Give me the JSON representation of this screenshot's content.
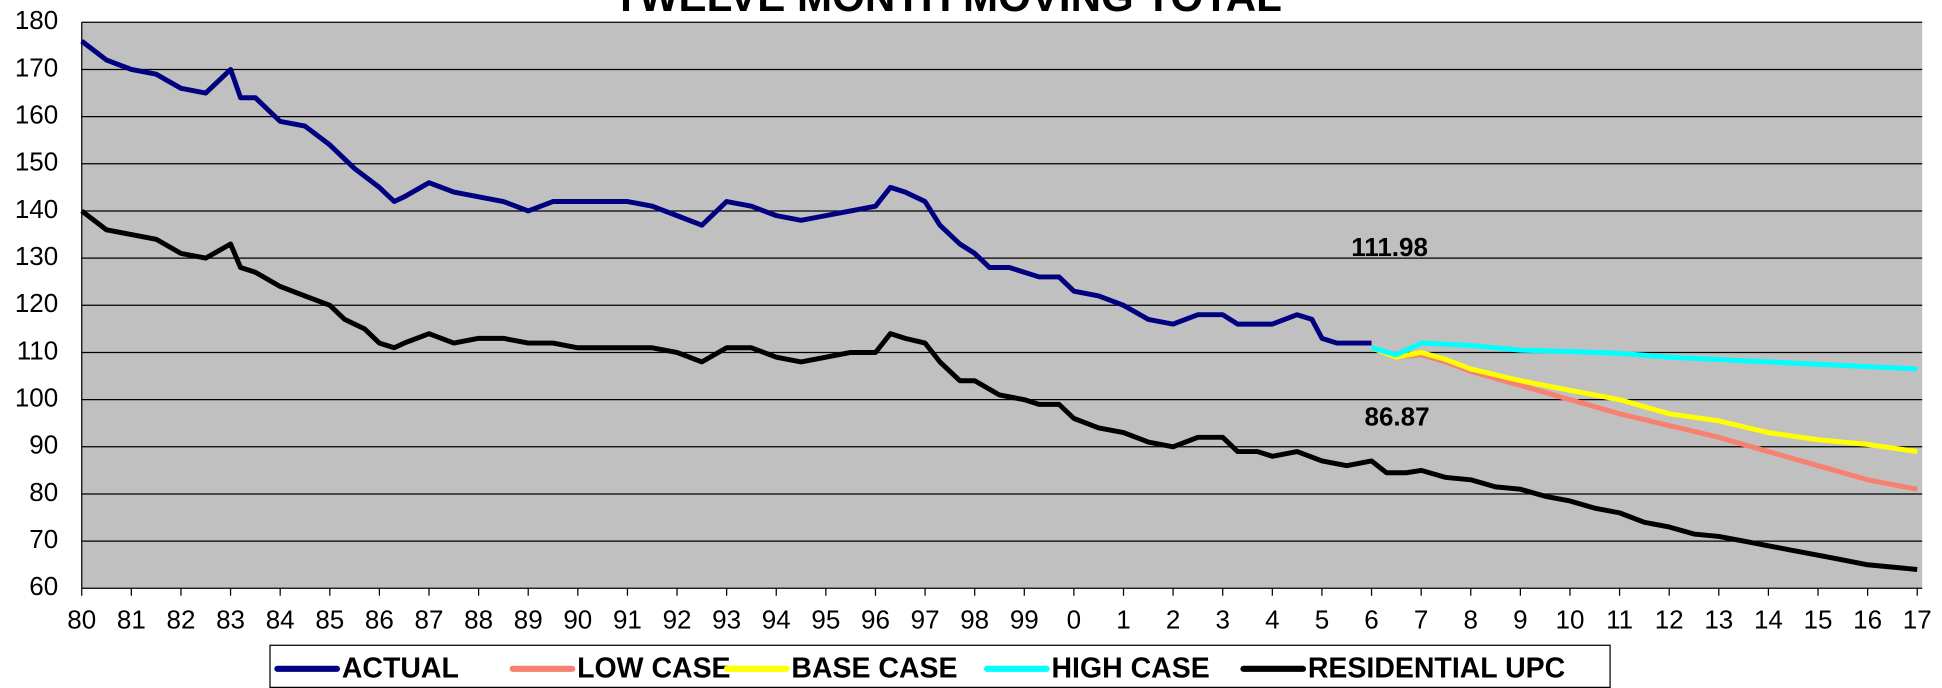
{
  "chart_data": {
    "type": "line",
    "title": "TWELVE MONTH MOVING TOTAL",
    "annotations": [
      "111.98",
      "86.87"
    ],
    "xlim": [
      0,
      37
    ],
    "xticks": [
      {
        "value": 0,
        "label": "80"
      },
      {
        "value": 1,
        "label": "81"
      },
      {
        "value": 2,
        "label": "82"
      },
      {
        "value": 3,
        "label": "83"
      },
      {
        "value": 4,
        "label": "84"
      },
      {
        "value": 5,
        "label": "85"
      },
      {
        "value": 6,
        "label": "86"
      },
      {
        "value": 7,
        "label": "87"
      },
      {
        "value": 8,
        "label": "88"
      },
      {
        "value": 9,
        "label": "89"
      },
      {
        "value": 10,
        "label": "90"
      },
      {
        "value": 11,
        "label": "91"
      },
      {
        "value": 12,
        "label": "92"
      },
      {
        "value": 13,
        "label": "93"
      },
      {
        "value": 14,
        "label": "94"
      },
      {
        "value": 15,
        "label": "95"
      },
      {
        "value": 16,
        "label": "96"
      },
      {
        "value": 17,
        "label": "97"
      },
      {
        "value": 18,
        "label": "98"
      },
      {
        "value": 19,
        "label": "99"
      },
      {
        "value": 20,
        "label": "0"
      },
      {
        "value": 21,
        "label": "1"
      },
      {
        "value": 22,
        "label": "2"
      },
      {
        "value": 23,
        "label": "3"
      },
      {
        "value": 24,
        "label": "4"
      },
      {
        "value": 25,
        "label": "5"
      },
      {
        "value": 26,
        "label": "6"
      },
      {
        "value": 27,
        "label": "7"
      },
      {
        "value": 28,
        "label": "8"
      },
      {
        "value": 29,
        "label": "9"
      },
      {
        "value": 30,
        "label": "10"
      },
      {
        "value": 31,
        "label": "11"
      },
      {
        "value": 32,
        "label": "12"
      },
      {
        "value": 33,
        "label": "13"
      },
      {
        "value": 34,
        "label": "14"
      },
      {
        "value": 35,
        "label": "15"
      },
      {
        "value": 36,
        "label": "16"
      },
      {
        "value": 37,
        "label": "17"
      }
    ],
    "ylim": [
      60,
      180
    ],
    "yticks": [
      60,
      70,
      80,
      90,
      100,
      110,
      120,
      130,
      140,
      150,
      160,
      170,
      180
    ],
    "grid": true,
    "legend": "bottom",
    "series": [
      {
        "name": "ACTUAL",
        "color": "#000080",
        "x": [
          0,
          0.5,
          1,
          1.5,
          2,
          2.5,
          3,
          3.2,
          3.5,
          4,
          4.5,
          5,
          5.5,
          6,
          6.3,
          6.5,
          7,
          7.5,
          8,
          8.5,
          9,
          9.5,
          10,
          10.5,
          11,
          11.5,
          12,
          12.5,
          13,
          13.5,
          14,
          14.5,
          15,
          15.5,
          16,
          16.3,
          16.6,
          17,
          17.3,
          17.7,
          18,
          18.3,
          18.7,
          19,
          19.3,
          19.7,
          20,
          20.5,
          21,
          21.5,
          22,
          22.5,
          23,
          23.3,
          23.5,
          24,
          24.5,
          24.8,
          25,
          25.3,
          25.7,
          26
        ],
        "values": [
          176,
          172,
          170,
          169,
          166,
          165,
          170,
          164,
          164,
          159,
          158,
          154,
          149,
          145,
          142,
          143,
          146,
          144,
          143,
          142,
          140,
          142,
          142,
          142,
          142,
          141,
          139,
          137,
          142,
          141,
          139,
          138,
          139,
          140,
          141,
          145,
          144,
          142,
          137,
          133,
          131,
          128,
          128,
          127,
          126,
          126,
          123,
          122,
          120,
          117,
          116,
          118,
          118,
          116,
          116,
          116,
          118,
          117,
          113,
          112,
          112,
          112
        ]
      },
      {
        "name": "LOW CASE",
        "color": "#f88070",
        "x": [
          26,
          26.5,
          27,
          27.5,
          28,
          29,
          30,
          31,
          32,
          33,
          34,
          35,
          36,
          37
        ],
        "values": [
          111,
          109,
          109.5,
          108,
          106,
          103,
          100,
          97,
          94.5,
          92,
          89,
          86,
          83,
          81
        ]
      },
      {
        "name": "BASE CASE",
        "color": "#ffff00",
        "x": [
          26,
          26.5,
          27,
          27.5,
          28,
          29,
          30,
          31,
          32,
          33,
          34,
          35,
          36,
          37
        ],
        "values": [
          111,
          109,
          110,
          108.5,
          106.5,
          104,
          102,
          100,
          97,
          95.5,
          93,
          91.5,
          90.5,
          89
        ]
      },
      {
        "name": "HIGH CASE",
        "color": "#00ffff",
        "x": [
          26,
          26.5,
          27,
          28,
          29,
          30,
          31,
          32,
          33,
          34,
          35,
          36,
          37
        ],
        "values": [
          111,
          109.5,
          112,
          111.5,
          110.5,
          110.2,
          109.8,
          109,
          108.5,
          108,
          107.5,
          107,
          106.5
        ]
      },
      {
        "name": "RESIDENTIAL UPC",
        "color": "#000000",
        "x": [
          0,
          0.5,
          1,
          1.5,
          2,
          2.5,
          3,
          3.2,
          3.5,
          4,
          4.5,
          5,
          5.3,
          5.7,
          6,
          6.3,
          6.5,
          7,
          7.5,
          8,
          8.5,
          9,
          9.5,
          10,
          10.5,
          11,
          11.5,
          12,
          12.5,
          13,
          13.5,
          14,
          14.5,
          15,
          15.5,
          16,
          16.3,
          16.6,
          17,
          17.3,
          17.7,
          18,
          18.5,
          19,
          19.3,
          19.7,
          20,
          20.5,
          21,
          21.5,
          22,
          22.5,
          23,
          23.3,
          23.7,
          24,
          24.5,
          25,
          25.5,
          26,
          26.3,
          26.7,
          27,
          27.5,
          28,
          28.5,
          29,
          29.5,
          30,
          30.5,
          31,
          31.5,
          32,
          32.5,
          33,
          33.5,
          34,
          34.5,
          35,
          35.5,
          36,
          36.5,
          37
        ],
        "values": [
          140,
          136,
          135,
          134,
          131,
          130,
          133,
          128,
          127,
          124,
          122,
          120,
          117,
          115,
          112,
          111,
          112,
          114,
          112,
          113,
          113,
          112,
          112,
          111,
          111,
          111,
          111,
          110,
          108,
          111,
          111,
          109,
          108,
          109,
          110,
          110,
          114,
          113,
          112,
          108,
          104,
          104,
          101,
          100,
          99,
          99,
          96,
          94,
          93,
          91,
          90,
          92,
          92,
          89,
          89,
          88,
          89,
          87,
          86,
          87,
          84.5,
          84.5,
          85,
          83.5,
          83,
          81.5,
          81,
          79.5,
          78.5,
          77,
          76,
          74,
          73,
          71.5,
          71,
          70,
          69,
          68,
          67,
          66,
          65,
          64.5,
          64
        ]
      }
    ]
  }
}
